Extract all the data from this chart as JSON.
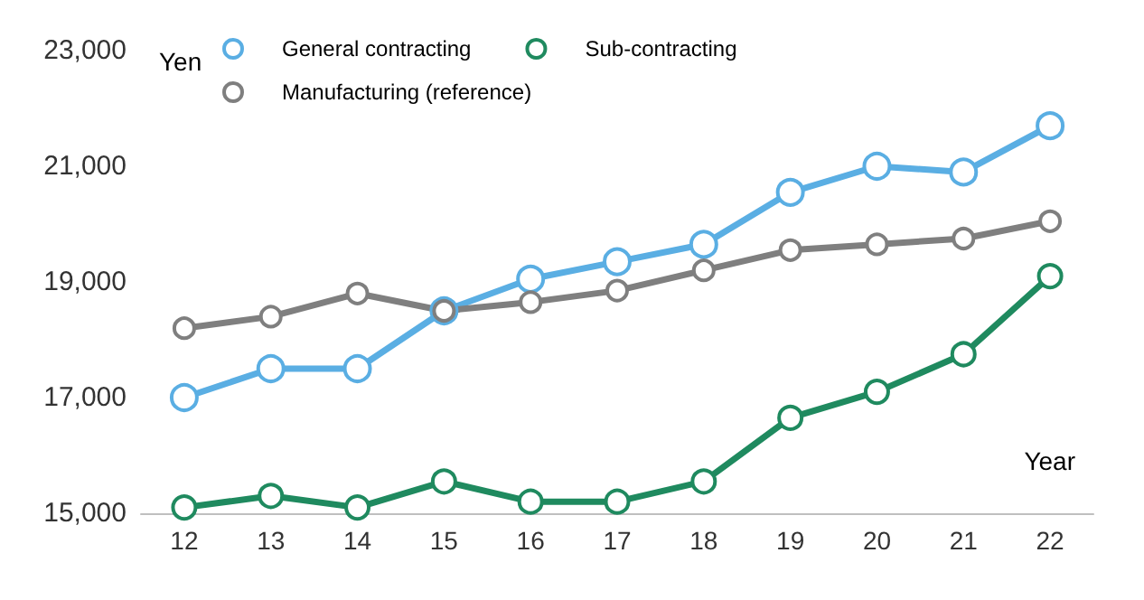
{
  "chart_data": {
    "type": "line",
    "ylabel": "Yen",
    "xlabel": "Year",
    "categories": [
      "12",
      "13",
      "14",
      "15",
      "16",
      "17",
      "18",
      "19",
      "20",
      "21",
      "22"
    ],
    "series": [
      {
        "name": "General contracting",
        "color": "#5aaee3",
        "values": [
          17000,
          17500,
          17500,
          18500,
          19050,
          19350,
          19650,
          20550,
          21000,
          20900,
          21700
        ]
      },
      {
        "name": "Sub-contracting",
        "color": "#1f8a5f",
        "values": [
          15100,
          15300,
          15100,
          15550,
          15200,
          15200,
          15550,
          16650,
          17100,
          17750,
          19100
        ]
      },
      {
        "name": "Manufacturing (reference)",
        "color": "#7f7f7f",
        "values": [
          18200,
          18400,
          18800,
          18500,
          18650,
          18850,
          19200,
          19550,
          19650,
          19750,
          20050
        ]
      }
    ],
    "ylim": [
      15000,
      23000
    ],
    "yticks": [
      {
        "value": 15000,
        "label": "15,000"
      },
      {
        "value": 17000,
        "label": "17,000"
      },
      {
        "value": 19000,
        "label": "19,000"
      },
      {
        "value": 21000,
        "label": "21,000"
      },
      {
        "value": 23000,
        "label": "23,000"
      }
    ],
    "grid": false,
    "legend": "top left",
    "marker": "circle",
    "line_style": "solid"
  }
}
